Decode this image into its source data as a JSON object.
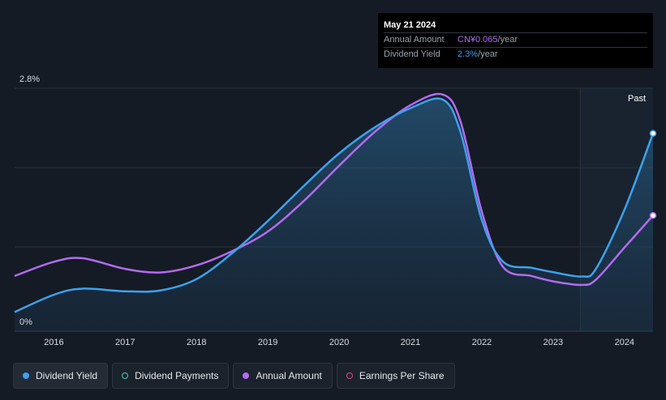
{
  "tooltip": {
    "date": "May 21 2024",
    "rows": [
      {
        "label": "Annual Amount",
        "value": "CN¥0.065",
        "unit": "/year"
      },
      {
        "label": "Dividend Yield",
        "value": "2.3%",
        "unit": "/year"
      }
    ]
  },
  "region_label": "Past",
  "legend": [
    {
      "label": "Dividend Yield",
      "color": "#3da2f0",
      "filled": true,
      "active": true
    },
    {
      "label": "Dividend Payments",
      "color": "#3fd0c0",
      "filled": false,
      "active": false
    },
    {
      "label": "Annual Amount",
      "color": "#b36bf2",
      "filled": true,
      "active": false
    },
    {
      "label": "Earnings Per Share",
      "color": "#d94a8a",
      "filled": false,
      "active": false
    }
  ],
  "chart_data": {
    "type": "line",
    "ytick_labels": [
      "2.8%",
      "0%"
    ],
    "ylim": [
      0,
      2.8
    ],
    "xlim": [
      2015.45,
      2024.4
    ],
    "xticks": [
      "2016",
      "2017",
      "2018",
      "2019",
      "2020",
      "2021",
      "2022",
      "2023",
      "2024"
    ],
    "grid": true,
    "past_region_start": 2023.38,
    "series": [
      {
        "name": "Dividend Yield",
        "color": "#3da2f0",
        "unit": "%",
        "area": true,
        "x": [
          2015.45,
          2016.0,
          2016.4,
          2017.0,
          2017.5,
          2018.0,
          2018.5,
          2019.0,
          2019.5,
          2020.0,
          2020.5,
          2021.0,
          2021.45,
          2021.7,
          2022.0,
          2022.3,
          2022.7,
          2023.0,
          2023.4,
          2023.6,
          2024.0,
          2024.4
        ],
        "y": [
          0.22,
          0.42,
          0.49,
          0.46,
          0.47,
          0.6,
          0.9,
          1.27,
          1.67,
          2.05,
          2.35,
          2.57,
          2.67,
          2.3,
          1.28,
          0.8,
          0.73,
          0.68,
          0.63,
          0.72,
          1.4,
          2.28
        ]
      },
      {
        "name": "Annual Amount",
        "color": "#b36bf2",
        "unit": "CN¥",
        "area": false,
        "x": [
          2015.45,
          2016.0,
          2016.4,
          2017.0,
          2017.5,
          2018.0,
          2018.5,
          2019.0,
          2019.5,
          2020.0,
          2020.5,
          2021.0,
          2021.45,
          2021.7,
          2022.0,
          2022.3,
          2022.7,
          2023.0,
          2023.4,
          2023.6,
          2024.0,
          2024.4
        ],
        "y": [
          0.031,
          0.039,
          0.041,
          0.035,
          0.033,
          0.037,
          0.045,
          0.056,
          0.073,
          0.093,
          0.112,
          0.127,
          0.133,
          0.118,
          0.067,
          0.036,
          0.031,
          0.028,
          0.026,
          0.029,
          0.047,
          0.065
        ]
      }
    ]
  }
}
